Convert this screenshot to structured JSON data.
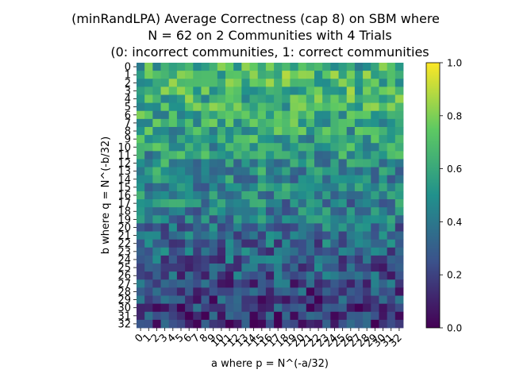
{
  "chart_data": {
    "type": "heatmap",
    "title_lines": [
      "(minRandLPA) Average Correctness (cap 8) on SBM where",
      "N = 62 on 2 Communities with 4 Trials",
      "(0: incorrect communities, 1: correct communities"
    ],
    "xlabel": "a where p = N^(-a/32)",
    "ylabel": "b where q = N^(-b/32)",
    "x_ticks": [
      "0",
      "1",
      "2",
      "3",
      "4",
      "5",
      "6",
      "7",
      "8",
      "9",
      "10",
      "11",
      "12",
      "13",
      "14",
      "15",
      "16",
      "17",
      "18",
      "19",
      "20",
      "21",
      "22",
      "23",
      "24",
      "25",
      "26",
      "27",
      "28",
      "29",
      "30",
      "31",
      "32"
    ],
    "y_ticks": [
      "0",
      "1",
      "2",
      "3",
      "4",
      "5",
      "6",
      "7",
      "8",
      "9",
      "10",
      "11",
      "12",
      "13",
      "14",
      "15",
      "16",
      "17",
      "18",
      "19",
      "20",
      "21",
      "22",
      "23",
      "24",
      "25",
      "26",
      "27",
      "28",
      "29",
      "30",
      "31",
      "32"
    ],
    "colorbar": {
      "range": [
        0.0,
        1.0
      ],
      "ticks": [
        "0.0",
        "0.2",
        "0.4",
        "0.6",
        "0.8",
        "1.0"
      ],
      "colormap": "viridis"
    },
    "row_means": [
      0.62,
      0.68,
      0.66,
      0.66,
      0.64,
      0.63,
      0.6,
      0.6,
      0.58,
      0.57,
      0.55,
      0.53,
      0.5,
      0.49,
      0.47,
      0.46,
      0.44,
      0.43,
      0.41,
      0.4,
      0.37,
      0.35,
      0.34,
      0.32,
      0.3,
      0.28,
      0.26,
      0.24,
      0.22,
      0.2,
      0.19,
      0.17,
      0.15
    ]
  }
}
